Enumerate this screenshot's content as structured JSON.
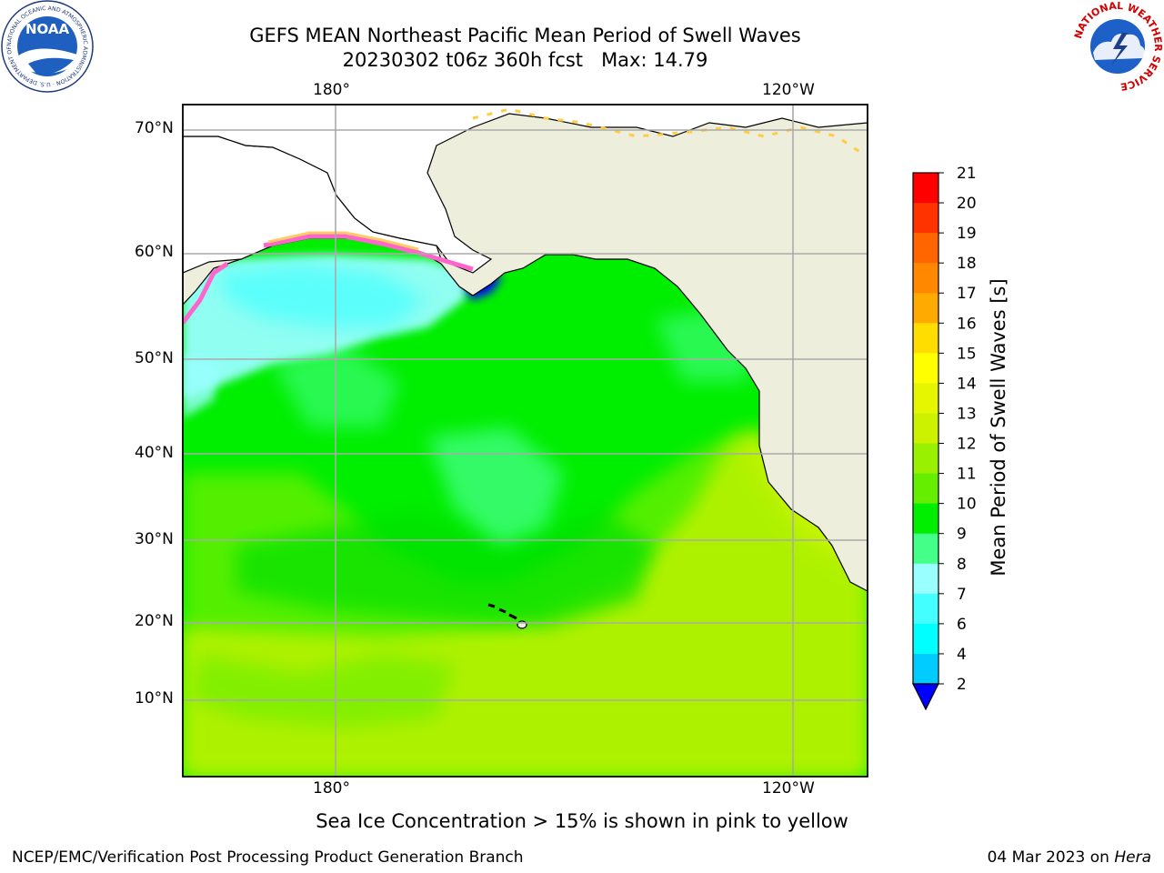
{
  "title": {
    "line1": "GEFS MEAN Northeast Pacific Mean Period of Swell Waves",
    "line2": "20230302 t06z 360h fcst   Max: 14.79"
  },
  "axes": {
    "lon_labels": [
      "180°",
      "120°W"
    ],
    "lat_labels": [
      "70°N",
      "60°N",
      "50°N",
      "40°N",
      "30°N",
      "20°N",
      "10°N"
    ]
  },
  "colorbar": {
    "label": "Mean Period of Swell Waves [s]",
    "ticks": [
      "21",
      "20",
      "19",
      "18",
      "17",
      "16",
      "15",
      "14",
      "13",
      "12",
      "11",
      "10",
      "9",
      "8",
      "7",
      "6",
      "4",
      "2"
    ],
    "colors": [
      "#ff0000",
      "#ff3300",
      "#ff6600",
      "#ff8800",
      "#ffaa00",
      "#ffdd00",
      "#ffff00",
      "#e6f500",
      "#ccf200",
      "#99f000",
      "#66ee00",
      "#00ee00",
      "#44ff88",
      "#99ffff",
      "#44ffff",
      "#00ffff",
      "#00ccff",
      "#0066ff",
      "#0000ff"
    ]
  },
  "field": {
    "ice_colors": [
      "#ff66cc",
      "#ff99aa",
      "#ffcc66",
      "#ffee44"
    ],
    "land_color": "#eeeedd"
  },
  "note": "Sea Ice Concentration > 15% is shown in pink to yellow",
  "footer": {
    "left": "NCEP/EMC/Verification Post Processing Product Generation Branch",
    "date": "04 Mar 2023 on ",
    "machine": "Hera"
  },
  "logos": {
    "noaa": {
      "text": "NOAA",
      "ring": "NATIONAL OCEANIC AND ATMOSPHERIC ADMINISTRATION · U.S. DEPARTMENT OF COMMERCE"
    },
    "nws": {
      "ring": "NATIONAL WEATHER SERVICE"
    }
  }
}
